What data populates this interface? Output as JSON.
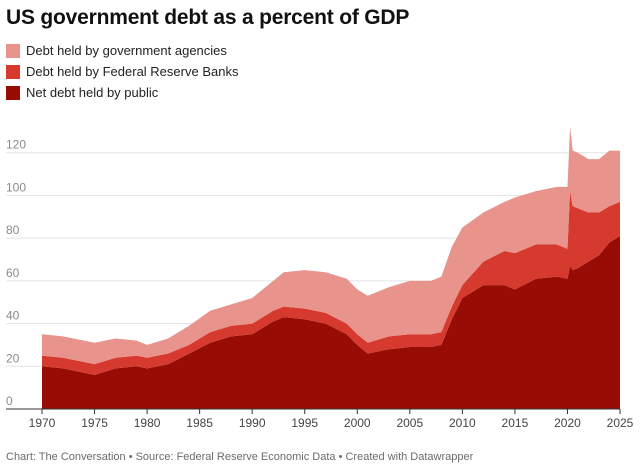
{
  "chart_data": {
    "type": "area",
    "stacked": true,
    "title": "US government debt as a percent of GDP",
    "xlabel": "",
    "ylabel": "",
    "xlim": [
      1970,
      2025
    ],
    "ylim": [
      0,
      140
    ],
    "y_ticks": [
      0,
      20,
      40,
      60,
      80,
      100,
      120
    ],
    "x_ticks": [
      1970,
      1975,
      1980,
      1985,
      1990,
      1995,
      2000,
      2005,
      2010,
      2015,
      2020,
      2025
    ],
    "legend_position": "top-left",
    "grid": true,
    "x": [
      1970,
      1972,
      1974,
      1975,
      1977,
      1979,
      1980,
      1982,
      1984,
      1986,
      1988,
      1990,
      1992,
      1993,
      1995,
      1997,
      1999,
      2000,
      2001,
      2003,
      2005,
      2007,
      2008,
      2009,
      2010,
      2012,
      2014,
      2015,
      2017,
      2019,
      2020,
      2020.25,
      2020.5,
      2021,
      2022,
      2023,
      2024,
      2025
    ],
    "series": [
      {
        "name": "Net debt held by public",
        "color": "#980c06",
        "values": [
          20,
          19,
          17,
          16,
          19,
          20,
          19,
          21,
          26,
          31,
          34,
          35,
          41,
          43,
          42,
          40,
          35,
          30,
          26,
          28,
          29,
          29,
          30,
          42,
          52,
          58,
          58,
          56,
          61,
          62,
          61,
          67,
          65,
          66,
          69,
          72,
          78,
          81
        ]
      },
      {
        "name": "Debt held by Federal Reserve Banks",
        "color": "#d63a2f",
        "values": [
          5,
          5,
          5,
          5,
          5,
          5,
          5,
          5,
          4,
          5,
          5,
          5,
          5,
          5,
          5,
          5,
          5,
          5,
          5,
          6,
          6,
          6,
          6,
          6,
          6,
          11,
          16,
          17,
          16,
          15,
          14,
          35,
          30,
          28,
          23,
          20,
          17,
          16
        ]
      },
      {
        "name": "Debt held by government agencies",
        "color": "#e8938b",
        "values": [
          10,
          10,
          10,
          10,
          9,
          7,
          6,
          7,
          9,
          10,
          10,
          12,
          14,
          16,
          18,
          19,
          21,
          21,
          22,
          23,
          25,
          25,
          26,
          28,
          27,
          23,
          23,
          26,
          25,
          27,
          29,
          30,
          26,
          26,
          25,
          25,
          26,
          24
        ]
      }
    ]
  },
  "footer": "Chart: The Conversation • Source: Federal Reserve Economic Data • Created with Datawrapper"
}
